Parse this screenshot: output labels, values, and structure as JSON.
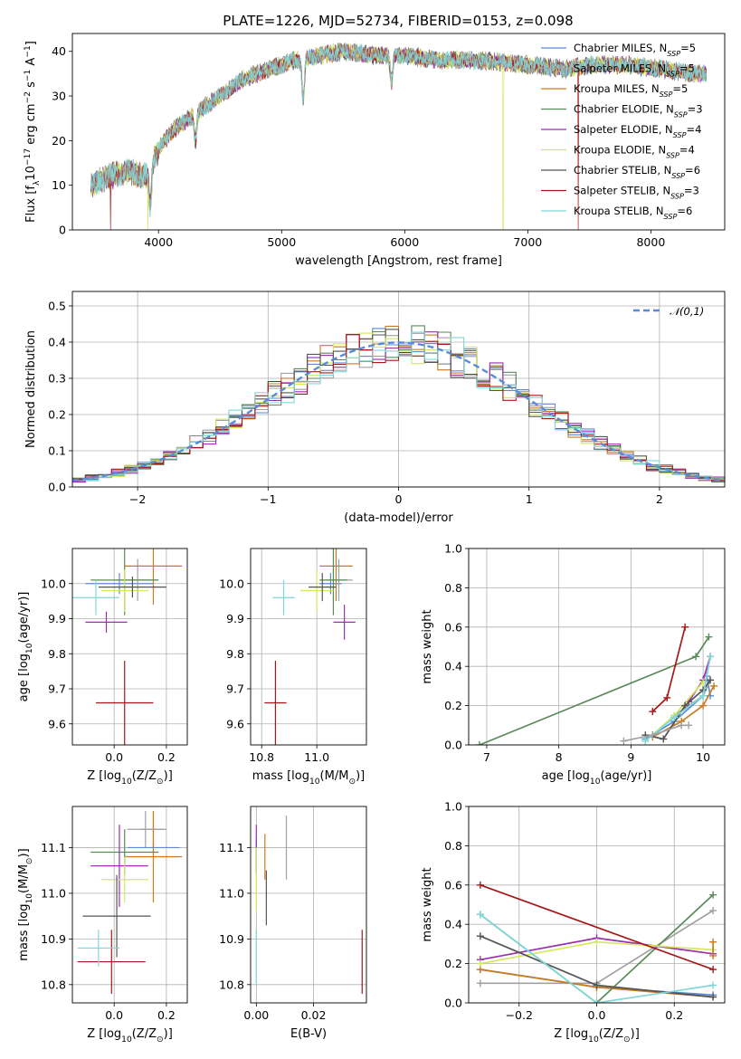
{
  "figure": {
    "title": "PLATE=1226, MJD=52734, FIBERID=0153, z=0.098"
  },
  "models": [
    {
      "name": "Chabrier MILES",
      "nssp": "5",
      "color": "#5b8bd6"
    },
    {
      "name": "Salpeter MILES",
      "nssp": "5",
      "color": "#a0a0a0"
    },
    {
      "name": "Kroupa MILES",
      "nssp": "5",
      "color": "#cc7a1f"
    },
    {
      "name": "Chabrier ELODIE",
      "nssp": "3",
      "color": "#5a8a5a"
    },
    {
      "name": "Salpeter ELODIE",
      "nssp": "4",
      "color": "#9b2fae"
    },
    {
      "name": "Kroupa ELODIE",
      "nssp": "4",
      "color": "#d4e85a"
    },
    {
      "name": "Chabrier STELIB",
      "nssp": "6",
      "color": "#555555"
    },
    {
      "name": "Salpeter STELIB",
      "nssp": "3",
      "color": "#a81818"
    },
    {
      "name": "Kroupa STELIB",
      "nssp": "6",
      "color": "#7fd8d8"
    }
  ],
  "chart_data": [
    {
      "id": "spectrum",
      "type": "line",
      "xlabel": "wavelength [Angstrom, rest frame]",
      "ylabel": "Flux [f_λ10^-17 erg cm^-2 s^-1 A^-1]",
      "xlim": [
        3300,
        8600
      ],
      "ylim": [
        0,
        44
      ],
      "xticks": [
        4000,
        5000,
        6000,
        7000,
        8000
      ],
      "yticks": [
        0,
        10,
        20,
        30,
        40
      ],
      "grid": false,
      "legend_placement": "right",
      "continuum_knots": {
        "x": [
          3450,
          3600,
          3750,
          3900,
          4000,
          4100,
          4300,
          4500,
          4700,
          4900,
          5100,
          5300,
          5500,
          5800,
          6000,
          6300,
          6600,
          7000,
          7300,
          7500,
          7800,
          8100,
          8300,
          8450
        ],
        "y": [
          10,
          12,
          13,
          12,
          18,
          22,
          26,
          30,
          34,
          36,
          38,
          39,
          40,
          39,
          39,
          38,
          38,
          37,
          36,
          37,
          37,
          36,
          35,
          35
        ]
      },
      "absorption_features": [
        {
          "x": 3933,
          "depth": 9
        },
        {
          "x": 4300,
          "depth": 6
        },
        {
          "x": 5175,
          "depth": 9
        },
        {
          "x": 5893,
          "depth": 6
        }
      ],
      "model_glitches": [
        {
          "model": "Kroupa ELODIE",
          "x": 3915,
          "to": 0
        },
        {
          "model": "Kroupa ELODIE",
          "x": 6800,
          "to": 0
        },
        {
          "model": "Salpeter STELIB",
          "x": 3610,
          "to": 0
        },
        {
          "model": "Salpeter STELIB",
          "x": 7410,
          "to": 0
        }
      ]
    },
    {
      "id": "residuals",
      "type": "step",
      "xlabel": "(data-model)/error",
      "ylabel": "Normed distribution",
      "xlim": [
        -2.5,
        2.5
      ],
      "ylim": [
        0,
        0.54
      ],
      "xticks": [
        -2,
        -1,
        0,
        1,
        2
      ],
      "yticks": [
        0.0,
        0.1,
        0.2,
        0.3,
        0.4,
        0.5
      ],
      "grid": true,
      "reference": {
        "label": "𝒩(0,1)",
        "mu": 0,
        "sigma": 1,
        "color": "#5b8bd6"
      },
      "bin_width": 0.1,
      "legend_placement": "top-right"
    },
    {
      "id": "age_vs_Z",
      "type": "errorbar",
      "xlabel": "Z [log10(Z/Z⊙)]",
      "ylabel": "age  [log10(age/yr)]",
      "xlim": [
        -0.16,
        0.28
      ],
      "ylim": [
        9.54,
        10.1
      ],
      "xticks": [
        0.0,
        0.2
      ],
      "yticks": [
        9.6,
        9.7,
        9.8,
        9.9,
        10.0
      ],
      "grid": true,
      "points": [
        {
          "model": "Chabrier MILES",
          "x": 0.02,
          "y": 10.0,
          "xerr": 0.13,
          "yerr": 0.03
        },
        {
          "model": "Salpeter MILES",
          "x": 0.09,
          "y": 10.01,
          "xerr": 0.08,
          "yerr": 0.06
        },
        {
          "model": "Kroupa MILES",
          "x": 0.15,
          "y": 10.05,
          "xerr": 0.11,
          "yerr": 0.11
        },
        {
          "model": "Chabrier ELODIE",
          "x": 0.04,
          "y": 10.01,
          "xerr": 0.13,
          "yerr": 0.1
        },
        {
          "model": "Salpeter ELODIE",
          "x": -0.03,
          "y": 9.89,
          "xerr": 0.08,
          "yerr": 0.03
        },
        {
          "model": "Kroupa ELODIE",
          "x": 0.04,
          "y": 9.98,
          "xerr": 0.09,
          "yerr": 0.06
        },
        {
          "model": "Chabrier STELIB",
          "x": 0.07,
          "y": 9.99,
          "xerr": 0.13,
          "yerr": 0.03
        },
        {
          "model": "Salpeter STELIB",
          "x": 0.04,
          "y": 9.66,
          "xerr": 0.11,
          "yerr": 0.12
        },
        {
          "model": "Kroupa STELIB",
          "x": -0.07,
          "y": 9.96,
          "xerr": 0.09,
          "yerr": 0.05
        }
      ]
    },
    {
      "id": "age_vs_mass",
      "type": "errorbar",
      "xlabel": "mass [log10(M/M⊙)]",
      "ylabel": "",
      "xlim": [
        10.76,
        11.18
      ],
      "ylim": [
        9.54,
        10.1
      ],
      "xticks": [
        10.8,
        11.0
      ],
      "yticks": [
        9.6,
        9.7,
        9.8,
        9.9,
        10.0
      ],
      "grid": true,
      "points": [
        {
          "model": "Chabrier MILES",
          "x": 11.05,
          "y": 10.0,
          "xerr": 0.04,
          "yerr": 0.03
        },
        {
          "model": "Salpeter MILES",
          "x": 11.08,
          "y": 10.01,
          "xerr": 0.05,
          "yerr": 0.06
        },
        {
          "model": "Kroupa MILES",
          "x": 11.07,
          "y": 10.05,
          "xerr": 0.06,
          "yerr": 0.1
        },
        {
          "model": "Chabrier ELODIE",
          "x": 11.06,
          "y": 10.01,
          "xerr": 0.05,
          "yerr": 0.1
        },
        {
          "model": "Salpeter ELODIE",
          "x": 11.1,
          "y": 9.89,
          "xerr": 0.04,
          "yerr": 0.05
        },
        {
          "model": "Kroupa ELODIE",
          "x": 11.0,
          "y": 9.98,
          "xerr": 0.06,
          "yerr": 0.06
        },
        {
          "model": "Chabrier STELIB",
          "x": 11.02,
          "y": 9.99,
          "xerr": 0.05,
          "yerr": 0.04
        },
        {
          "model": "Salpeter STELIB",
          "x": 10.85,
          "y": 9.66,
          "xerr": 0.04,
          "yerr": 0.12
        },
        {
          "model": "Kroupa STELIB",
          "x": 10.88,
          "y": 9.96,
          "xerr": 0.04,
          "yerr": 0.05
        }
      ]
    },
    {
      "id": "mass_weight_vs_age",
      "type": "line",
      "xlabel": "age  [log10(age/yr)]",
      "ylabel": "mass weight",
      "xlim": [
        6.75,
        10.3
      ],
      "ylim": [
        0,
        1.0
      ],
      "xticks": [
        7,
        8,
        9,
        10
      ],
      "yticks": [
        0.0,
        0.2,
        0.4,
        0.6,
        0.8,
        1.0
      ],
      "grid": true,
      "series": [
        {
          "model": "Chabrier MILES",
          "x": [
            9.2,
            9.6,
            10.0,
            10.05,
            10.1
          ],
          "y": [
            0.03,
            0.12,
            0.25,
            0.35,
            0.25
          ]
        },
        {
          "model": "Salpeter MILES",
          "x": [
            9.3,
            9.6,
            10.0,
            10.1
          ],
          "y": [
            0.05,
            0.15,
            0.25,
            0.33
          ]
        },
        {
          "model": "Kroupa MILES",
          "x": [
            9.3,
            9.7,
            10.0,
            10.15
          ],
          "y": [
            0.04,
            0.12,
            0.2,
            0.3
          ]
        },
        {
          "model": "Chabrier ELODIE",
          "x": [
            6.9,
            9.9,
            10.08
          ],
          "y": [
            0.0,
            0.45,
            0.55
          ]
        },
        {
          "model": "Salpeter ELODIE",
          "x": [
            9.8,
            10.0,
            10.1
          ],
          "y": [
            0.22,
            0.33,
            0.45
          ]
        },
        {
          "model": "Kroupa ELODIE",
          "x": [
            9.2,
            9.6,
            10.0
          ],
          "y": [
            0.02,
            0.15,
            0.32
          ]
        },
        {
          "model": "Chabrier STELIB",
          "x": [
            9.2,
            9.45,
            9.75,
            10.0,
            10.1
          ],
          "y": [
            0.05,
            0.03,
            0.2,
            0.28,
            0.33
          ]
        },
        {
          "model": "Salpeter STELIB",
          "x": [
            9.3,
            9.5,
            9.75
          ],
          "y": [
            0.17,
            0.24,
            0.6
          ]
        },
        {
          "model": "Kroupa STELIB",
          "x": [
            9.2,
            9.6,
            10.0,
            10.1
          ],
          "y": [
            0.02,
            0.14,
            0.25,
            0.45
          ]
        },
        {
          "model": "Salpeter MILES",
          "x": [
            8.9,
            9.3,
            9.7,
            9.8
          ],
          "y": [
            0.02,
            0.05,
            0.1,
            0.1
          ]
        }
      ]
    },
    {
      "id": "mass_vs_Z",
      "type": "errorbar",
      "xlabel": "Z [log10(Z/Z⊙)]",
      "ylabel": "mass [log10(M/M⊙)]",
      "xlim": [
        -0.16,
        0.28
      ],
      "ylim": [
        10.76,
        11.19
      ],
      "xticks": [
        0.0,
        0.2
      ],
      "yticks": [
        10.8,
        10.9,
        11.0,
        11.1
      ],
      "grid": true,
      "points": [
        {
          "model": "Chabrier MILES",
          "x": 0.15,
          "y": 11.1,
          "xerr": 0.1,
          "yerr": 0.01
        },
        {
          "model": "Salpeter MILES",
          "x": 0.15,
          "y": 11.14,
          "xerr": 0.05,
          "yerr": 0.04
        },
        {
          "model": "Kroupa MILES",
          "x": 0.15,
          "y": 11.08,
          "xerr": 0.11,
          "yerr": 0.1
        },
        {
          "model": "Chabrier ELODIE",
          "x": 0.04,
          "y": 11.09,
          "xerr": 0.13,
          "yerr": 0.05
        },
        {
          "model": "Salpeter ELODIE",
          "x": 0.02,
          "y": 11.06,
          "xerr": 0.11,
          "yerr": 0.09
        },
        {
          "model": "Kroupa ELODIE",
          "x": 0.04,
          "y": 11.03,
          "xerr": 0.09,
          "yerr": 0.05
        },
        {
          "model": "Chabrier STELIB",
          "x": 0.01,
          "y": 10.95,
          "xerr": 0.13,
          "yerr": 0.09
        },
        {
          "model": "Salpeter STELIB",
          "x": -0.01,
          "y": 10.85,
          "xerr": 0.13,
          "yerr": 0.07
        },
        {
          "model": "Kroupa STELIB",
          "x": -0.06,
          "y": 10.88,
          "xerr": 0.08,
          "yerr": 0.04
        },
        {
          "model": "Salpeter MILES",
          "x": 0.12,
          "y": 11.14,
          "xerr": 0.07,
          "yerr": 0.04
        }
      ]
    },
    {
      "id": "mass_vs_ebv",
      "type": "errorbar",
      "xlabel": "E(B-V)",
      "ylabel": "",
      "xlim": [
        -0.002,
        0.0385
      ],
      "ylim": [
        10.76,
        11.19
      ],
      "xticks": [
        0.0,
        0.02
      ],
      "yticks": [
        10.8,
        10.9,
        11.0,
        11.1
      ],
      "grid": true,
      "points": [
        {
          "model": "Chabrier MILES",
          "x": 0.0,
          "y": 11.08,
          "xerr": 0,
          "yerr": 0.04
        },
        {
          "model": "Salpeter ELODIE",
          "x": 0.0,
          "y": 11.1,
          "xerr": 0,
          "yerr": 0.05
        },
        {
          "model": "Kroupa ELODIE",
          "x": 0.0,
          "y": 11.03,
          "xerr": 0,
          "yerr": 0.07
        },
        {
          "model": "Kroupa MILES",
          "x": 0.003,
          "y": 11.08,
          "xerr": 0,
          "yerr": 0.05
        },
        {
          "model": "Chabrier STELIB",
          "x": 0.0035,
          "y": 10.99,
          "xerr": 0,
          "yerr": 0.06
        },
        {
          "model": "Salpeter MILES",
          "x": 0.0105,
          "y": 11.1,
          "xerr": 0,
          "yerr": 0.07
        },
        {
          "model": "Kroupa STELIB",
          "x": 0.0,
          "y": 10.86,
          "xerr": 0,
          "yerr": 0.06
        },
        {
          "model": "Salpeter STELIB",
          "x": 0.037,
          "y": 10.85,
          "xerr": 0,
          "yerr": 0.07
        }
      ]
    },
    {
      "id": "mass_weight_vs_Z",
      "type": "line",
      "xlabel": "Z [log10(Z/Z⊙)]",
      "ylabel": "mass weight",
      "xlim": [
        -0.33,
        0.33
      ],
      "ylim": [
        0,
        1.0
      ],
      "xticks": [
        -0.2,
        0.0,
        0.2
      ],
      "yticks": [
        0.0,
        0.2,
        0.4,
        0.6,
        0.8,
        1.0
      ],
      "grid": true,
      "series": [
        {
          "model": "Chabrier MILES",
          "x": [
            -0.3,
            0.0,
            0.3
          ],
          "y": [
            0.17,
            0.08,
            0.04
          ]
        },
        {
          "model": "Salpeter MILES",
          "x": [
            -0.3,
            0.0,
            0.3
          ],
          "y": [
            0.1,
            0.1,
            0.47
          ]
        },
        {
          "model": "Kroupa MILES",
          "x": [
            -0.3,
            0.0,
            0.3
          ],
          "y": [
            0.17,
            0.08,
            0.03
          ]
        },
        {
          "model": "Chabrier ELODIE",
          "x": [
            -0.3,
            0.0,
            0.3
          ],
          "y": [
            0.45,
            0.0,
            0.55
          ]
        },
        {
          "model": "Salpeter ELODIE",
          "x": [
            -0.3,
            0.0,
            0.3
          ],
          "y": [
            0.22,
            0.33,
            0.25
          ]
        },
        {
          "model": "Kroupa ELODIE",
          "x": [
            -0.3,
            0.0,
            0.3
          ],
          "y": [
            0.2,
            0.31,
            0.27
          ]
        },
        {
          "model": "Chabrier STELIB",
          "x": [
            -0.3,
            0.0,
            0.3
          ],
          "y": [
            0.34,
            0.09,
            0.03
          ]
        },
        {
          "model": "Salpeter STELIB",
          "x": [
            -0.3,
            0.3
          ],
          "y": [
            0.6,
            0.17
          ]
        },
        {
          "model": "Kroupa STELIB",
          "x": [
            -0.3,
            0.0,
            0.3
          ],
          "y": [
            0.45,
            0.0,
            0.09
          ]
        },
        {
          "model": "Kroupa MILES",
          "x": [
            0.3,
            0.3
          ],
          "y": [
            0.31,
            0.24
          ]
        }
      ]
    }
  ]
}
